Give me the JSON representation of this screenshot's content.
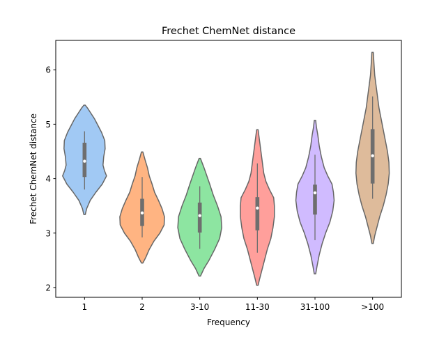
{
  "chart_data": {
    "type": "violin",
    "title": "Frechet ChemNet distance",
    "xlabel": "Frequency",
    "ylabel": "Frechet ChemNet distance",
    "ylim": [
      1.82,
      6.54
    ],
    "yticks": [
      2,
      3,
      4,
      5,
      6
    ],
    "categories": [
      "1",
      "2",
      "3-10",
      "11-30",
      "31-100",
      ">100"
    ],
    "colors": [
      "#a1c9f4",
      "#ffb482",
      "#8de5a1",
      "#ff9f9b",
      "#d0bbff",
      "#debb9b"
    ],
    "edge_color": "#666666",
    "grid": false,
    "legend": "none",
    "series": [
      {
        "range": [
          3.34,
          5.35
        ],
        "whisker": [
          3.8,
          4.87
        ],
        "box": [
          4.03,
          4.66
        ],
        "median": 4.32,
        "profile": [
          [
            3.34,
            0.02
          ],
          [
            3.45,
            0.06
          ],
          [
            3.6,
            0.16
          ],
          [
            3.75,
            0.32
          ],
          [
            3.9,
            0.5
          ],
          [
            4.05,
            0.62
          ],
          [
            4.15,
            0.56
          ],
          [
            4.25,
            0.52
          ],
          [
            4.4,
            0.54
          ],
          [
            4.55,
            0.58
          ],
          [
            4.7,
            0.57
          ],
          [
            4.85,
            0.48
          ],
          [
            5.0,
            0.36
          ],
          [
            5.1,
            0.28
          ],
          [
            5.2,
            0.18
          ],
          [
            5.3,
            0.08
          ],
          [
            5.35,
            0.02
          ]
        ]
      },
      {
        "range": [
          2.45,
          4.49
        ],
        "whisker": [
          2.92,
          4.03
        ],
        "box": [
          3.13,
          3.63
        ],
        "median": 3.37,
        "profile": [
          [
            2.45,
            0.02
          ],
          [
            2.55,
            0.1
          ],
          [
            2.7,
            0.2
          ],
          [
            2.85,
            0.33
          ],
          [
            3.0,
            0.5
          ],
          [
            3.15,
            0.62
          ],
          [
            3.3,
            0.63
          ],
          [
            3.45,
            0.56
          ],
          [
            3.6,
            0.46
          ],
          [
            3.75,
            0.35
          ],
          [
            3.9,
            0.28
          ],
          [
            4.05,
            0.2
          ],
          [
            4.2,
            0.15
          ],
          [
            4.35,
            0.08
          ],
          [
            4.49,
            0.02
          ]
        ]
      },
      {
        "range": [
          2.21,
          4.37
        ],
        "whisker": [
          2.71,
          3.86
        ],
        "box": [
          3.01,
          3.56
        ],
        "median": 3.32,
        "profile": [
          [
            2.21,
            0.02
          ],
          [
            2.35,
            0.12
          ],
          [
            2.5,
            0.26
          ],
          [
            2.7,
            0.42
          ],
          [
            2.9,
            0.56
          ],
          [
            3.1,
            0.62
          ],
          [
            3.3,
            0.6
          ],
          [
            3.5,
            0.5
          ],
          [
            3.7,
            0.38
          ],
          [
            3.9,
            0.28
          ],
          [
            4.05,
            0.2
          ],
          [
            4.2,
            0.12
          ],
          [
            4.37,
            0.02
          ]
        ]
      },
      {
        "range": [
          2.04,
          4.9
        ],
        "whisker": [
          2.64,
          4.28
        ],
        "box": [
          3.05,
          3.66
        ],
        "median": 3.46,
        "profile": [
          [
            2.04,
            0.02
          ],
          [
            2.15,
            0.06
          ],
          [
            2.3,
            0.12
          ],
          [
            2.5,
            0.2
          ],
          [
            2.7,
            0.28
          ],
          [
            2.9,
            0.38
          ],
          [
            3.1,
            0.44
          ],
          [
            3.3,
            0.48
          ],
          [
            3.5,
            0.48
          ],
          [
            3.65,
            0.46
          ],
          [
            3.8,
            0.34
          ],
          [
            3.95,
            0.24
          ],
          [
            4.1,
            0.18
          ],
          [
            4.3,
            0.14
          ],
          [
            4.5,
            0.1
          ],
          [
            4.7,
            0.06
          ],
          [
            4.9,
            0.02
          ]
        ]
      },
      {
        "range": [
          2.25,
          5.07
        ],
        "whisker": [
          2.87,
          4.44
        ],
        "box": [
          3.34,
          3.89
        ],
        "median": 3.74,
        "profile": [
          [
            2.25,
            0.02
          ],
          [
            2.4,
            0.06
          ],
          [
            2.6,
            0.12
          ],
          [
            2.8,
            0.2
          ],
          [
            3.0,
            0.3
          ],
          [
            3.2,
            0.42
          ],
          [
            3.4,
            0.5
          ],
          [
            3.6,
            0.54
          ],
          [
            3.75,
            0.52
          ],
          [
            3.9,
            0.48
          ],
          [
            4.05,
            0.36
          ],
          [
            4.2,
            0.26
          ],
          [
            4.4,
            0.18
          ],
          [
            4.6,
            0.12
          ],
          [
            4.8,
            0.08
          ],
          [
            4.95,
            0.04
          ],
          [
            5.07,
            0.02
          ]
        ]
      },
      {
        "range": [
          2.81,
          6.32
        ],
        "whisker": [
          3.63,
          5.51
        ],
        "box": [
          3.91,
          4.91
        ],
        "median": 4.42,
        "profile": [
          [
            2.81,
            0.02
          ],
          [
            2.95,
            0.06
          ],
          [
            3.1,
            0.12
          ],
          [
            3.3,
            0.2
          ],
          [
            3.5,
            0.3
          ],
          [
            3.7,
            0.38
          ],
          [
            3.9,
            0.44
          ],
          [
            4.1,
            0.47
          ],
          [
            4.3,
            0.46
          ],
          [
            4.5,
            0.42
          ],
          [
            4.7,
            0.36
          ],
          [
            4.9,
            0.3
          ],
          [
            5.1,
            0.24
          ],
          [
            5.3,
            0.18
          ],
          [
            5.5,
            0.14
          ],
          [
            5.7,
            0.1
          ],
          [
            5.9,
            0.06
          ],
          [
            6.1,
            0.04
          ],
          [
            6.32,
            0.02
          ]
        ]
      }
    ]
  }
}
